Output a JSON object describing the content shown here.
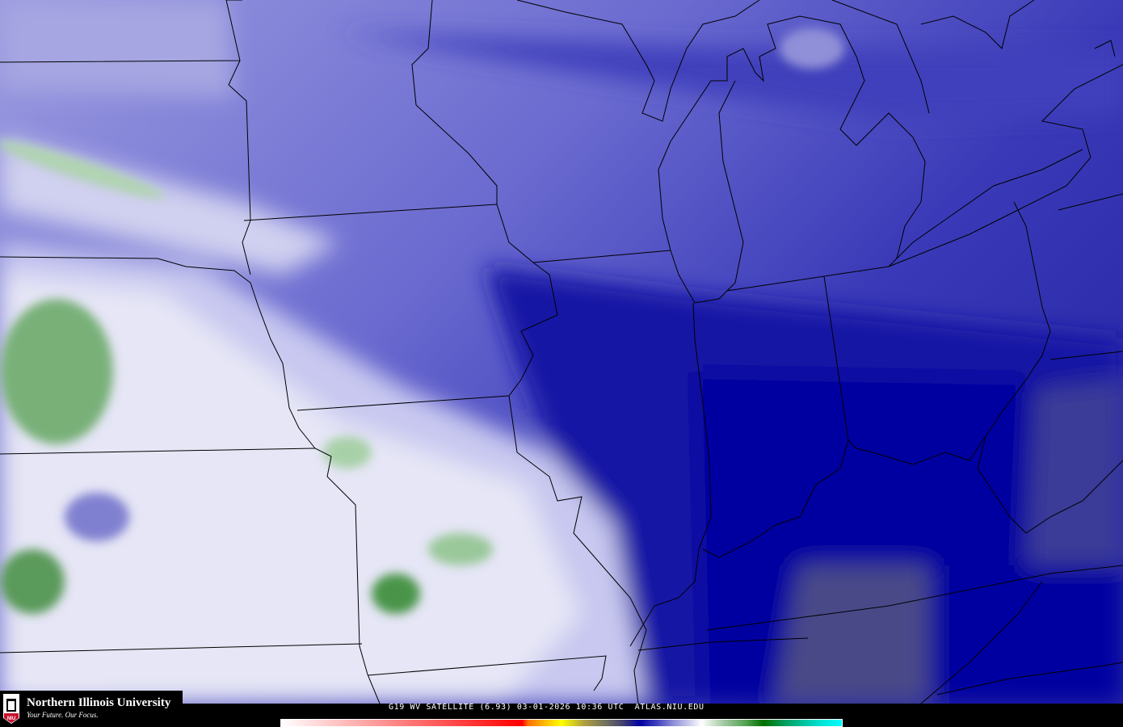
{
  "map": {
    "product": "G19 WV SATELLITE (6.93)",
    "date": "03-01-2026",
    "time": "10:36 UTC",
    "site": "ATLAS.NIU.EDU"
  },
  "logo": {
    "name": "Northern Illinois University",
    "tagline": "Your Future. Our Focus.",
    "badge": "NIU"
  },
  "colors": {
    "dry_dark": "#0a0aa0",
    "mid_blue": "#4a4ac0",
    "light_blue": "#8c8cd8",
    "white_moist": "#f0f0f8",
    "green_moist": "#5a9a5a",
    "border": "#000000"
  },
  "colorbar_stops": [
    "#ffffff",
    "#ff0000",
    "#ff7000",
    "#ffd000",
    "#ffff00",
    "#b0a040",
    "#707060",
    "#404070",
    "#0000a0",
    "#4040c0",
    "#9090d8",
    "#d0d0f0",
    "#ffffff",
    "#a0c8a0",
    "#50a050",
    "#007000",
    "#00a060",
    "#00e0d0",
    "#00ffff"
  ]
}
